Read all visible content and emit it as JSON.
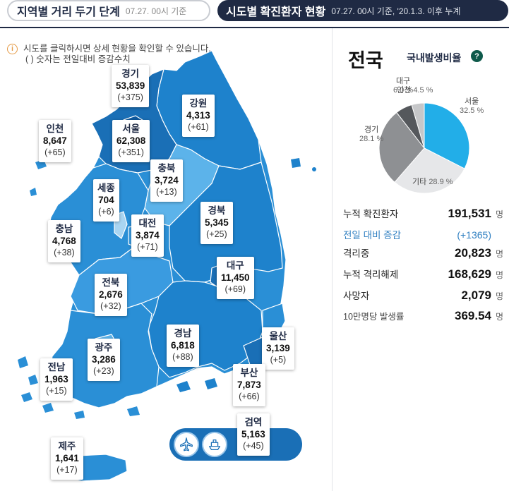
{
  "tabs": {
    "distance": {
      "title": "지역별 거리 두기 단계",
      "date": "07.27. 00시 기준"
    },
    "city": {
      "title": "시도별 확진환자 현황",
      "date": "07.27. 00시 기준, '20.1.3. 이후 누계"
    }
  },
  "notice": {
    "icon": "i",
    "line1": "시도를 클릭하시면 상세 현황을 확인할 수 있습니다.",
    "line2": "( ) 숫자는 전일대비 증감수치"
  },
  "regions": {
    "gyeonggi": {
      "name": "경기",
      "total": "53,839",
      "delta": "(+375)"
    },
    "gangwon": {
      "name": "강원",
      "total": "4,313",
      "delta": "(+61)"
    },
    "incheon": {
      "name": "인천",
      "total": "8,647",
      "delta": "(+65)"
    },
    "seoul": {
      "name": "서울",
      "total": "62,308",
      "delta": "(+351)"
    },
    "chungbuk": {
      "name": "충북",
      "total": "3,724",
      "delta": "(+13)"
    },
    "sejong": {
      "name": "세종",
      "total": "704",
      "delta": "(+6)"
    },
    "chungnam": {
      "name": "충남",
      "total": "4,768",
      "delta": "(+38)"
    },
    "daejeon": {
      "name": "대전",
      "total": "3,874",
      "delta": "(+71)"
    },
    "gyeongbuk": {
      "name": "경북",
      "total": "5,345",
      "delta": "(+25)"
    },
    "daegu": {
      "name": "대구",
      "total": "11,450",
      "delta": "(+69)"
    },
    "jeonbuk": {
      "name": "전북",
      "total": "2,676",
      "delta": "(+32)"
    },
    "gyeongnam": {
      "name": "경남",
      "total": "6,818",
      "delta": "(+88)"
    },
    "ulsan": {
      "name": "울산",
      "total": "3,139",
      "delta": "(+5)"
    },
    "gwangju": {
      "name": "광주",
      "total": "3,286",
      "delta": "(+23)"
    },
    "jeonnam": {
      "name": "전남",
      "total": "1,963",
      "delta": "(+15)"
    },
    "busan": {
      "name": "부산",
      "total": "7,873",
      "delta": "(+66)"
    },
    "quarantine": {
      "name": "검역",
      "total": "5,163",
      "delta": "(+45)"
    },
    "jeju": {
      "name": "제주",
      "total": "1,641",
      "delta": "(+17)"
    }
  },
  "transport": {
    "airplane_icon": "airplane-icon",
    "ship_icon": "ship-icon"
  },
  "national": {
    "title": "전국",
    "ratio_label": "국내발생비율",
    "help_icon": "?"
  },
  "pie": {
    "slices": [
      {
        "name": "서울",
        "pct": "32.5 %",
        "value": 32.5,
        "color": "#22aee8"
      },
      {
        "name": "기타",
        "pct": "28.9 %",
        "value": 28.9,
        "color": "#e6e7e9"
      },
      {
        "name": "경기",
        "pct": "28.1 %",
        "value": 28.1,
        "color": "#8e9093"
      },
      {
        "name": "대구",
        "pct": "6.0 %",
        "value": 6.0,
        "color": "#55585c"
      },
      {
        "name": "인천",
        "pct": "4.5 %",
        "value": 4.5,
        "color": "#c6c7c9"
      }
    ]
  },
  "stats": {
    "cumulative": {
      "label": "누적 확진환자",
      "value": "191,531",
      "unit": "명"
    },
    "daily_change": {
      "label": "전일 대비 증감",
      "value": "(+1365)"
    },
    "isolating": {
      "label": "격리중",
      "value": "20,823",
      "unit": "명"
    },
    "released": {
      "label": "누적 격리해제",
      "value": "168,629",
      "unit": "명"
    },
    "deaths": {
      "label": "사망자",
      "value": "2,079",
      "unit": "명"
    },
    "rate": {
      "label": "10만명당 발생률",
      "value": "369.54",
      "unit": "명"
    }
  },
  "colors": {
    "tab_active": "#1f2a44",
    "map_dark": "#1a6fb6",
    "map_mid": "#2a8fd6",
    "map_light": "#5cb3ea",
    "accent_blue": "#2f7fc1"
  }
}
